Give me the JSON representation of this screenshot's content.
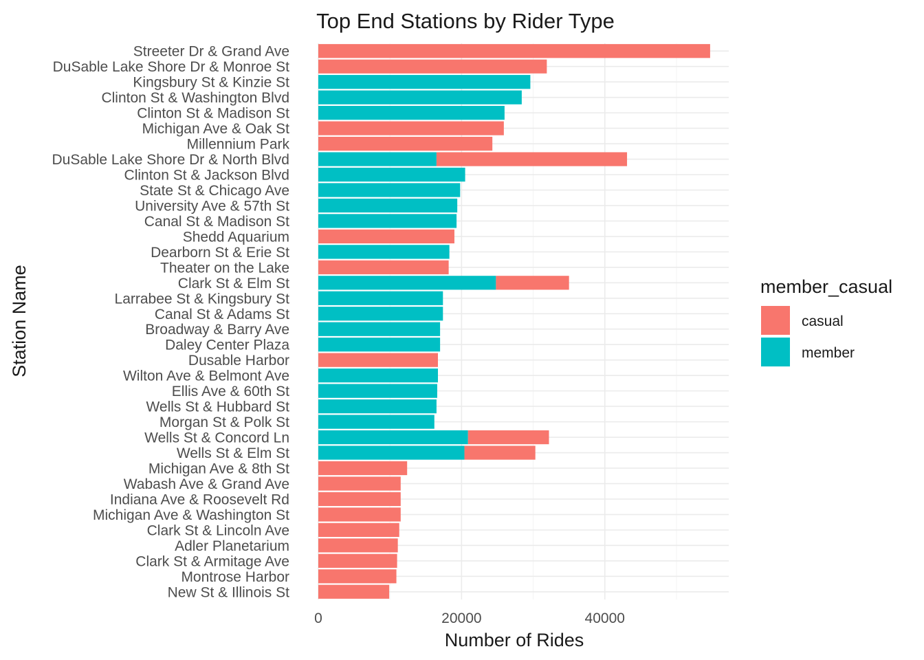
{
  "chart_data": {
    "type": "bar",
    "orientation": "horizontal",
    "stacked": true,
    "title": "Top End Stations by Rider Type",
    "xlabel": "Number of Rides",
    "ylabel": "Station Name",
    "xlim": [
      0,
      57300
    ],
    "x_ticks": [
      0,
      20000,
      40000
    ],
    "x_tick_labels": [
      "0",
      "20000",
      "40000"
    ],
    "grid": true,
    "legend": {
      "title": "member_casual",
      "placement": "right",
      "entries": [
        {
          "name": "casual",
          "color": "#F8766D"
        },
        {
          "name": "member",
          "color": "#00BFC4"
        }
      ]
    },
    "categories": [
      "Streeter Dr & Grand Ave",
      "DuSable Lake Shore Dr & Monroe St",
      "Kingsbury St & Kinzie St",
      "Clinton St & Washington Blvd",
      "Clinton St & Madison St",
      "Michigan Ave & Oak St",
      "Millennium Park",
      "DuSable Lake Shore Dr & North Blvd",
      "Clinton St & Jackson Blvd",
      "State St & Chicago Ave",
      "University Ave & 57th St",
      "Canal St & Madison St",
      "Shedd Aquarium",
      "Dearborn St & Erie St",
      "Theater on the Lake",
      "Clark St & Elm St",
      "Larrabee St & Kingsbury St",
      "Canal St & Adams St",
      "Broadway & Barry Ave",
      "Daley Center Plaza",
      "Dusable Harbor",
      "Wilton Ave & Belmont Ave",
      "Ellis Ave & 60th St",
      "Wells St & Hubbard St",
      "Morgan St & Polk St",
      "Wells St & Concord Ln",
      "Wells St & Elm St",
      "Michigan Ave & 8th St",
      "Wabash Ave & Grand Ave",
      "Indiana Ave & Roosevelt Rd",
      "Michigan Ave & Washington St",
      "Clark St & Lincoln Ave",
      "Adler Planetarium",
      "Clark St & Armitage Ave",
      "Montrose Harbor",
      "New St & Illinois St"
    ],
    "series": [
      {
        "name": "member",
        "color": "#00BFC4",
        "values": [
          0,
          0,
          29600,
          28400,
          26000,
          0,
          0,
          16500,
          20500,
          19800,
          19400,
          19300,
          0,
          18300,
          0,
          24800,
          17400,
          17400,
          17000,
          17000,
          0,
          16700,
          16600,
          16500,
          16200,
          20900,
          20400,
          0,
          0,
          0,
          0,
          0,
          0,
          0,
          0,
          0
        ]
      },
      {
        "name": "casual",
        "color": "#F8766D",
        "values": [
          54700,
          31900,
          0,
          0,
          0,
          25900,
          24300,
          26600,
          0,
          0,
          0,
          0,
          19000,
          0,
          18200,
          10200,
          0,
          0,
          0,
          0,
          16700,
          0,
          0,
          0,
          0,
          11300,
          9900,
          12400,
          11500,
          11500,
          11500,
          11300,
          11100,
          11000,
          10900,
          9900
        ]
      }
    ]
  }
}
